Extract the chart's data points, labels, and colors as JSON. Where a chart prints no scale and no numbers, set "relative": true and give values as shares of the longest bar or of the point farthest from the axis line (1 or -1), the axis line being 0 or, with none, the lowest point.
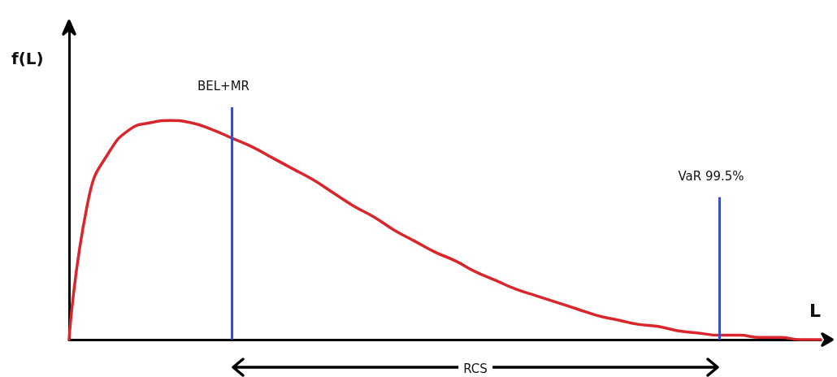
{
  "chart_data": {
    "type": "line",
    "relative": true,
    "xlabel": "L",
    "ylabel": "f(L)",
    "categories": [
      null,
      null,
      null,
      null,
      null,
      null,
      null,
      null,
      null,
      null,
      null,
      null,
      null,
      null,
      null,
      null,
      null,
      null,
      null,
      null,
      null,
      null,
      null,
      null,
      null,
      null,
      null,
      null,
      null,
      null,
      null,
      null,
      null,
      null,
      null,
      null,
      null,
      null
    ],
    "series": [
      {
        "color": "#d9262c",
        "values": [
          0,
          0.66,
          0.86,
          0.96,
          0.99,
          1,
          0.99,
          0.96,
          0.92,
          0.88,
          0.83,
          0.78,
          0.73,
          0.67,
          0.61,
          0.56,
          0.5,
          0.45,
          0.4,
          0.36,
          0.31,
          0.27,
          0.23,
          0.2,
          0.17,
          0.14,
          0.11,
          0.09,
          0.07,
          0.06,
          0.04,
          0.03,
          0.02,
          0.02,
          0.01,
          0.01,
          0,
          0
        ]
      }
    ],
    "annotations": [
      "BEL+MR",
      "VaR 99.5%",
      "RCS"
    ],
    "marker": "none",
    "line_style": "solid"
  }
}
